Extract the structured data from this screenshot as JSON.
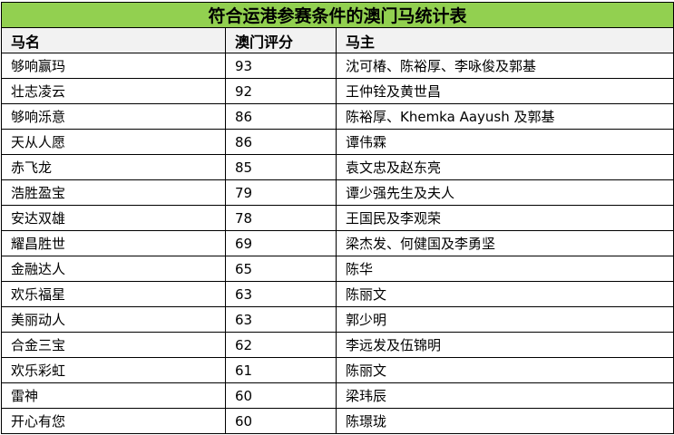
{
  "title": "符合运港参赛条件的澳门马统计表",
  "colors": {
    "title_bg": "#92d050",
    "header_bg": "#f2f2f2"
  },
  "headers": [
    "马名",
    "澳门评分",
    "马主"
  ],
  "rows": [
    [
      "够响赢玛",
      "93",
      "沈可椿、陈裕厚、李咏俊及郭基"
    ],
    [
      "壮志凌云",
      "92",
      "王仲铨及黄世昌"
    ],
    [
      "够响泺意",
      "86",
      "陈裕厚、Khemka Aayush 及郭基"
    ],
    [
      "天从人愿",
      "86",
      "谭伟霖"
    ],
    [
      "赤飞龙",
      "85",
      "袁文忠及赵东亮"
    ],
    [
      "浩胜盈宝",
      "79",
      "谭少强先生及夫人"
    ],
    [
      "安达双雄",
      "78",
      "王国民及李观荣"
    ],
    [
      "耀昌胜世",
      "69",
      "梁杰发、何健国及李勇坚"
    ],
    [
      "金融达人",
      "65",
      "陈华"
    ],
    [
      "欢乐福星",
      "63",
      "陈丽文"
    ],
    [
      "美丽动人",
      "63",
      "郭少明"
    ],
    [
      "合金三宝",
      "62",
      "李远发及伍锦明"
    ],
    [
      "欢乐彩虹",
      "61",
      "陈丽文"
    ],
    [
      "雷神",
      "60",
      "梁玮辰"
    ],
    [
      "开心有您",
      "60",
      "陈璟珑"
    ]
  ]
}
